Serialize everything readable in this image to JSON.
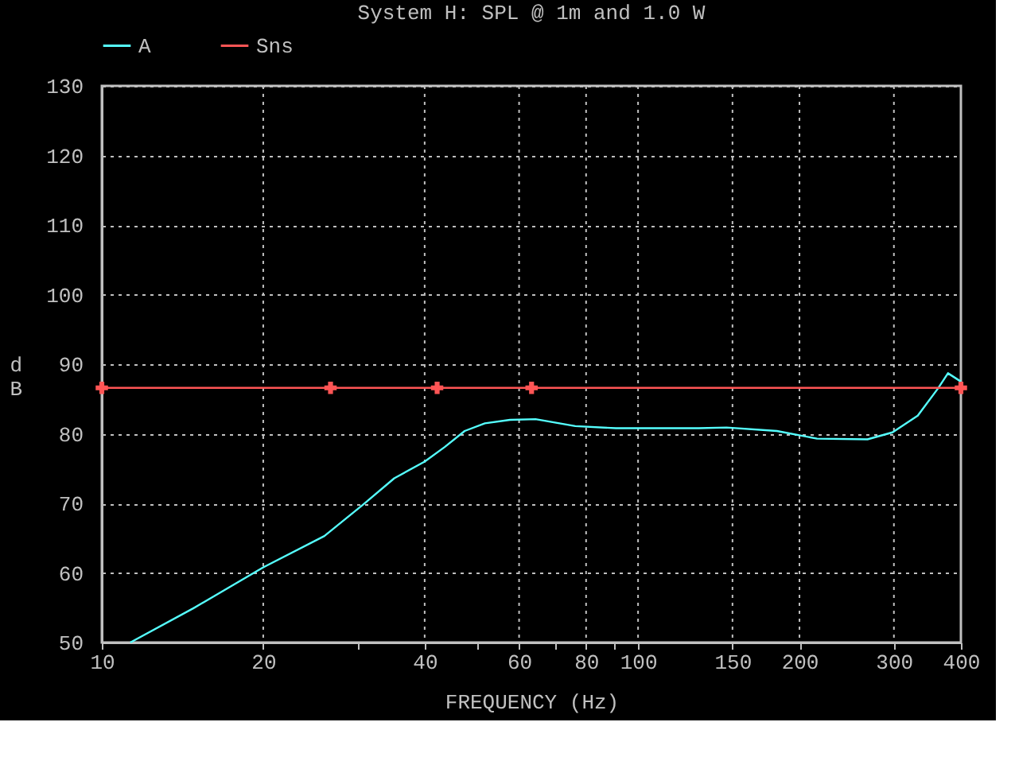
{
  "chart_data": {
    "type": "line",
    "title": "System H: SPL @ 1m and 1.0 W",
    "xlabel": "FREQUENCY (Hz)",
    "ylabel": "dB",
    "log": "x",
    "xlim": [
      10,
      400
    ],
    "ylim": [
      50,
      130
    ],
    "xticks": [
      10,
      20,
      {
        "value": 30,
        "label": null
      },
      40,
      {
        "value": 50,
        "label": null
      },
      60,
      {
        "value": 70,
        "label": null
      },
      80,
      {
        "value": 90,
        "label": null
      },
      100,
      150,
      200,
      300,
      400
    ],
    "yticks": [
      50,
      60,
      70,
      80,
      90,
      100,
      110,
      120,
      130
    ],
    "grid": true,
    "legend": "top left",
    "series": [
      {
        "name": "A",
        "color": "#55ffff",
        "marker": "none",
        "x": [
          11.3,
          14.8,
          20.0,
          26.0,
          30.8,
          35.1,
          40.0,
          43.6,
          47.5,
          51.8,
          57.7,
          64.4,
          76.4,
          90.9,
          129.8,
          146.2,
          181.5,
          215.7,
          267.8,
          298.2,
          332.3,
          362.4,
          378.4,
          400
        ],
        "values": [
          50.0,
          54.9,
          60.8,
          65.3,
          69.9,
          73.6,
          76.0,
          78.1,
          80.4,
          81.5,
          82.0,
          82.1,
          81.1,
          80.8,
          80.8,
          80.9,
          80.4,
          79.3,
          79.2,
          80.2,
          82.6,
          86.5,
          88.7,
          87.5
        ]
      },
      {
        "name": "Sns",
        "color": "#ff5555",
        "marker": "cross",
        "x": [
          10,
          26.7,
          42.2,
          63.3,
          400
        ],
        "values": [
          86.6,
          86.6,
          86.6,
          86.6,
          86.6
        ]
      }
    ]
  }
}
